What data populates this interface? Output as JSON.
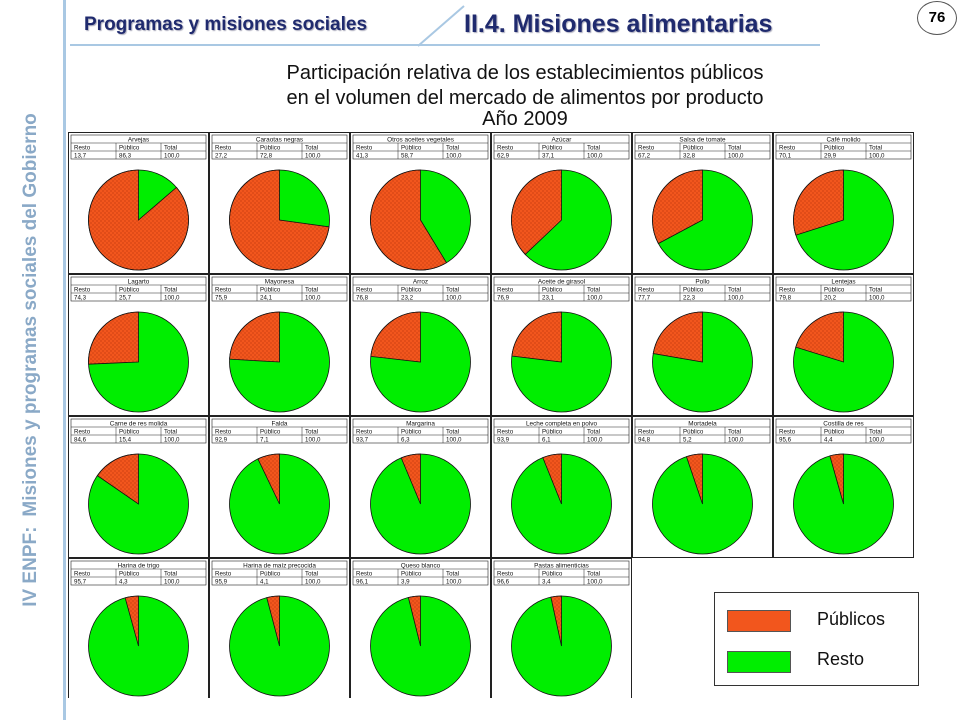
{
  "header": {
    "section": "Programas y misiones sociales",
    "subsection": "II.4. Misiones alimentarias",
    "page_number": "76"
  },
  "sidebar": {
    "label_prefix": "IV ENPF:",
    "label_main": "Misiones y programas sociales del Gobierno"
  },
  "title": {
    "line1": "Participación relativa de los establecimientos públicos",
    "line2": "en el volumen del mercado de alimentos por producto",
    "line3": "Año 2009"
  },
  "table_headers": [
    "Resto",
    "Público",
    "Total"
  ],
  "legend": {
    "items": [
      {
        "label": "Públicos",
        "color": "#f2561d"
      },
      {
        "label": "Resto",
        "color": "#00ee00"
      }
    ]
  },
  "colors": {
    "publico": "#f2561d",
    "resto": "#00ee00",
    "accent": "#1f2a6e",
    "sidebar": "#8aa9c7"
  },
  "chart_data": {
    "type": "pie",
    "series_order": [
      "Resto",
      "Público"
    ],
    "charts": [
      {
        "title": "Arvejas",
        "resto": 13.7,
        "publico": 86.3,
        "resto_label": "13,7",
        "publico_label": "86,3",
        "total_label": "100,0"
      },
      {
        "title": "Caraotas negras",
        "resto": 27.2,
        "publico": 72.8,
        "resto_label": "27,2",
        "publico_label": "72,8",
        "total_label": "100,0"
      },
      {
        "title": "Otros aceites vegetales",
        "resto": 41.3,
        "publico": 58.7,
        "resto_label": "41,3",
        "publico_label": "58,7",
        "total_label": "100,0"
      },
      {
        "title": "Azúcar",
        "resto": 62.9,
        "publico": 37.1,
        "resto_label": "62,9",
        "publico_label": "37,1",
        "total_label": "100,0"
      },
      {
        "title": "Salsa de tomate",
        "resto": 67.2,
        "publico": 32.8,
        "resto_label": "67,2",
        "publico_label": "32,8",
        "total_label": "100,0"
      },
      {
        "title": "Café molido",
        "resto": 70.1,
        "publico": 29.9,
        "resto_label": "70,1",
        "publico_label": "29,9",
        "total_label": "100,0"
      },
      {
        "title": "Lagarto",
        "resto": 74.3,
        "publico": 25.7,
        "resto_label": "74,3",
        "publico_label": "25,7",
        "total_label": "100,0"
      },
      {
        "title": "Mayonesa",
        "resto": 75.9,
        "publico": 24.1,
        "resto_label": "75,9",
        "publico_label": "24,1",
        "total_label": "100,0"
      },
      {
        "title": "Arroz",
        "resto": 76.8,
        "publico": 23.2,
        "resto_label": "76,8",
        "publico_label": "23,2",
        "total_label": "100,0"
      },
      {
        "title": "Aceite de girasol",
        "resto": 76.9,
        "publico": 23.1,
        "resto_label": "76,9",
        "publico_label": "23,1",
        "total_label": "100,0"
      },
      {
        "title": "Pollo",
        "resto": 77.7,
        "publico": 22.3,
        "resto_label": "77,7",
        "publico_label": "22,3",
        "total_label": "100,0"
      },
      {
        "title": "Lentejas",
        "resto": 79.8,
        "publico": 20.2,
        "resto_label": "79,8",
        "publico_label": "20,2",
        "total_label": "100,0"
      },
      {
        "title": "Carne de res molida",
        "resto": 84.6,
        "publico": 15.4,
        "resto_label": "84,6",
        "publico_label": "15,4",
        "total_label": "100,0"
      },
      {
        "title": "Falda",
        "resto": 92.9,
        "publico": 7.1,
        "resto_label": "92,9",
        "publico_label": "7,1",
        "total_label": "100,0"
      },
      {
        "title": "Margarina",
        "resto": 93.7,
        "publico": 6.3,
        "resto_label": "93,7",
        "publico_label": "6,3",
        "total_label": "100,0"
      },
      {
        "title": "Leche completa en polvo",
        "resto": 93.9,
        "publico": 6.1,
        "resto_label": "93,9",
        "publico_label": "6,1",
        "total_label": "100,0"
      },
      {
        "title": "Mortadela",
        "resto": 94.8,
        "publico": 5.2,
        "resto_label": "94,8",
        "publico_label": "5,2",
        "total_label": "100,0"
      },
      {
        "title": "Costilla de res",
        "resto": 95.6,
        "publico": 4.4,
        "resto_label": "95,6",
        "publico_label": "4,4",
        "total_label": "100,0"
      },
      {
        "title": "Harina de trigo",
        "resto": 95.7,
        "publico": 4.3,
        "resto_label": "95,7",
        "publico_label": "4,3",
        "total_label": "100,0"
      },
      {
        "title": "Harina de maíz precocida",
        "resto": 95.9,
        "publico": 4.1,
        "resto_label": "95,9",
        "publico_label": "4,1",
        "total_label": "100,0"
      },
      {
        "title": "Queso blanco",
        "resto": 96.1,
        "publico": 3.9,
        "resto_label": "96,1",
        "publico_label": "3,9",
        "total_label": "100,0"
      },
      {
        "title": "Pastas alimenticias",
        "resto": 96.6,
        "publico": 3.4,
        "resto_label": "96,6",
        "publico_label": "3,4",
        "total_label": "100,0"
      }
    ]
  }
}
